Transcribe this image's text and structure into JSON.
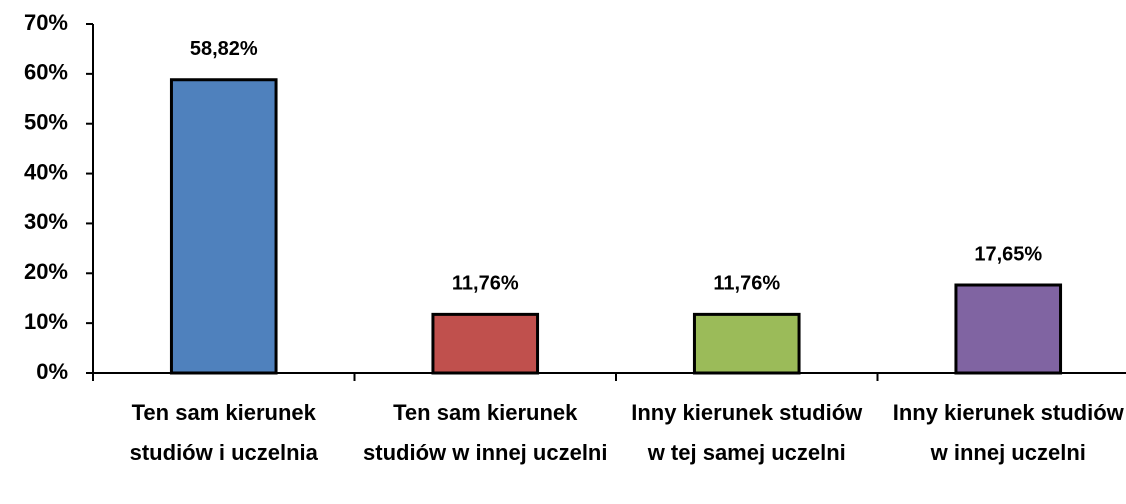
{
  "chart_data": {
    "type": "bar",
    "categories": [
      "Ten sam kierunek studiów i uczelnia",
      "Ten sam kierunek studiów w innej uczelni",
      "Inny kierunek studiów w tej samej uczelni",
      "Inny kierunek studiów w innej uczelni"
    ],
    "values": [
      58.82,
      11.76,
      11.76,
      17.65
    ],
    "value_labels": [
      "58,82%",
      "11,76%",
      "11,76%",
      "17,65%"
    ],
    "colors": [
      "#4f81bd",
      "#c0504d",
      "#9bbb59",
      "#8064a2"
    ],
    "ylim": [
      0,
      70
    ],
    "yticks": [
      {
        "value": 0,
        "label": "0%"
      },
      {
        "value": 10,
        "label": "10%"
      },
      {
        "value": 20,
        "label": "20%"
      },
      {
        "value": 30,
        "label": "30%"
      },
      {
        "value": 40,
        "label": "40%"
      },
      {
        "value": 50,
        "label": "50%"
      },
      {
        "value": 60,
        "label": "60%"
      },
      {
        "value": 70,
        "label": "70%"
      }
    ],
    "grid": false
  }
}
